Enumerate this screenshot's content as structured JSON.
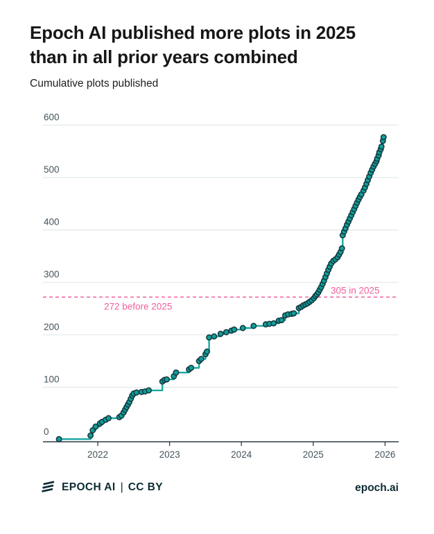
{
  "title": {
    "line1": "Epoch AI published more plots in 2025",
    "line2": "than in all prior years combined"
  },
  "subtitle": "Cumulative plots published",
  "footer": {
    "brand": "EPOCH AI",
    "separator": "|",
    "license": "CC BY",
    "site": "epoch.ai"
  },
  "colors": {
    "accent_teal_line": "#19a8a0",
    "dot_fill": "#0e9f98",
    "dot_stroke": "#15353d",
    "pink": "#f0609f",
    "gridline": "#e4e9e9",
    "axis": "#2b3b43",
    "tick_label": "#44545c",
    "footer_navy": "#0d2b33"
  },
  "chart_data": {
    "type": "line",
    "subtype": "cumulative-step-with-markers",
    "title": "Epoch AI published more plots in 2025 than in all prior years combined",
    "subtitle": "Cumulative plots published",
    "xlabel": "",
    "ylabel": "Cumulative plots published",
    "x_ticks": [
      2022,
      2023,
      2024,
      2025,
      2026
    ],
    "y_ticks": [
      0,
      100,
      200,
      300,
      400,
      500,
      600
    ],
    "xlim": [
      2021.24,
      2026.19
    ],
    "ylim": [
      0,
      600
    ],
    "grid": "horizontal",
    "legend": "none",
    "step": "after",
    "reference_line": {
      "value": 272,
      "style": "dashed",
      "color": "#f0609f"
    },
    "annotations": [
      {
        "label": "272 before 2025",
        "value": 272,
        "side": "below-left"
      },
      {
        "label": "305 in 2025",
        "value": 272,
        "side": "above-right"
      }
    ],
    "totals": {
      "before_2025": 272,
      "in_2025": 305,
      "final_cumulative": 577
    },
    "series": [
      {
        "name": "Cumulative plots published",
        "points": [
          [
            2021.46,
            1
          ],
          [
            2021.9,
            8
          ],
          [
            2021.93,
            18
          ],
          [
            2021.97,
            25
          ],
          [
            2022.03,
            31
          ],
          [
            2022.06,
            34
          ],
          [
            2022.11,
            38
          ],
          [
            2022.15,
            41
          ],
          [
            2022.3,
            43
          ],
          [
            2022.33,
            46
          ],
          [
            2022.36,
            52
          ],
          [
            2022.38,
            57
          ],
          [
            2022.4,
            62
          ],
          [
            2022.42,
            67
          ],
          [
            2022.44,
            72
          ],
          [
            2022.46,
            78
          ],
          [
            2022.48,
            84
          ],
          [
            2022.5,
            88
          ],
          [
            2022.54,
            90
          ],
          [
            2022.61,
            91
          ],
          [
            2022.66,
            92
          ],
          [
            2022.71,
            94
          ],
          [
            2022.9,
            111
          ],
          [
            2022.93,
            114
          ],
          [
            2022.96,
            115
          ],
          [
            2023.06,
            121
          ],
          [
            2023.09,
            128
          ],
          [
            2023.27,
            134
          ],
          [
            2023.3,
            137
          ],
          [
            2023.41,
            150
          ],
          [
            2023.44,
            154
          ],
          [
            2023.5,
            163
          ],
          [
            2023.52,
            168
          ],
          [
            2023.55,
            195
          ],
          [
            2023.62,
            197
          ],
          [
            2023.71,
            202
          ],
          [
            2023.79,
            205
          ],
          [
            2023.86,
            208
          ],
          [
            2023.9,
            210
          ],
          [
            2024.02,
            213
          ],
          [
            2024.17,
            217
          ],
          [
            2024.34,
            220
          ],
          [
            2024.39,
            221
          ],
          [
            2024.45,
            222
          ],
          [
            2024.52,
            227
          ],
          [
            2024.56,
            228
          ],
          [
            2024.61,
            237
          ],
          [
            2024.65,
            239
          ],
          [
            2024.7,
            240
          ],
          [
            2024.73,
            241
          ],
          [
            2024.8,
            251
          ],
          [
            2024.83,
            253
          ],
          [
            2024.86,
            256
          ],
          [
            2024.89,
            258
          ],
          [
            2024.92,
            260
          ],
          [
            2024.95,
            263
          ],
          [
            2024.98,
            266
          ],
          [
            2025.01,
            270
          ],
          [
            2025.03,
            274
          ],
          [
            2025.05,
            277
          ],
          [
            2025.07,
            281
          ],
          [
            2025.09,
            286
          ],
          [
            2025.11,
            291
          ],
          [
            2025.13,
            297
          ],
          [
            2025.15,
            303
          ],
          [
            2025.17,
            310
          ],
          [
            2025.19,
            317
          ],
          [
            2025.21,
            324
          ],
          [
            2025.23,
            330
          ],
          [
            2025.25,
            336
          ],
          [
            2025.28,
            341
          ],
          [
            2025.31,
            344
          ],
          [
            2025.34,
            348
          ],
          [
            2025.36,
            353
          ],
          [
            2025.38,
            358
          ],
          [
            2025.4,
            365
          ],
          [
            2025.41,
            390
          ],
          [
            2025.43,
            397
          ],
          [
            2025.45,
            403
          ],
          [
            2025.47,
            410
          ],
          [
            2025.49,
            416
          ],
          [
            2025.51,
            422
          ],
          [
            2025.53,
            428
          ],
          [
            2025.55,
            434
          ],
          [
            2025.57,
            440
          ],
          [
            2025.59,
            446
          ],
          [
            2025.61,
            452
          ],
          [
            2025.63,
            458
          ],
          [
            2025.65,
            463
          ],
          [
            2025.67,
            468
          ],
          [
            2025.7,
            475
          ],
          [
            2025.72,
            481
          ],
          [
            2025.74,
            488
          ],
          [
            2025.76,
            495
          ],
          [
            2025.78,
            502
          ],
          [
            2025.8,
            509
          ],
          [
            2025.82,
            515
          ],
          [
            2025.84,
            521
          ],
          [
            2025.86,
            526
          ],
          [
            2025.88,
            531
          ],
          [
            2025.89,
            536
          ],
          [
            2025.91,
            542
          ],
          [
            2025.92,
            548
          ],
          [
            2025.94,
            554
          ],
          [
            2025.95,
            559
          ],
          [
            2025.97,
            570
          ],
          [
            2025.98,
            577
          ]
        ]
      }
    ]
  }
}
